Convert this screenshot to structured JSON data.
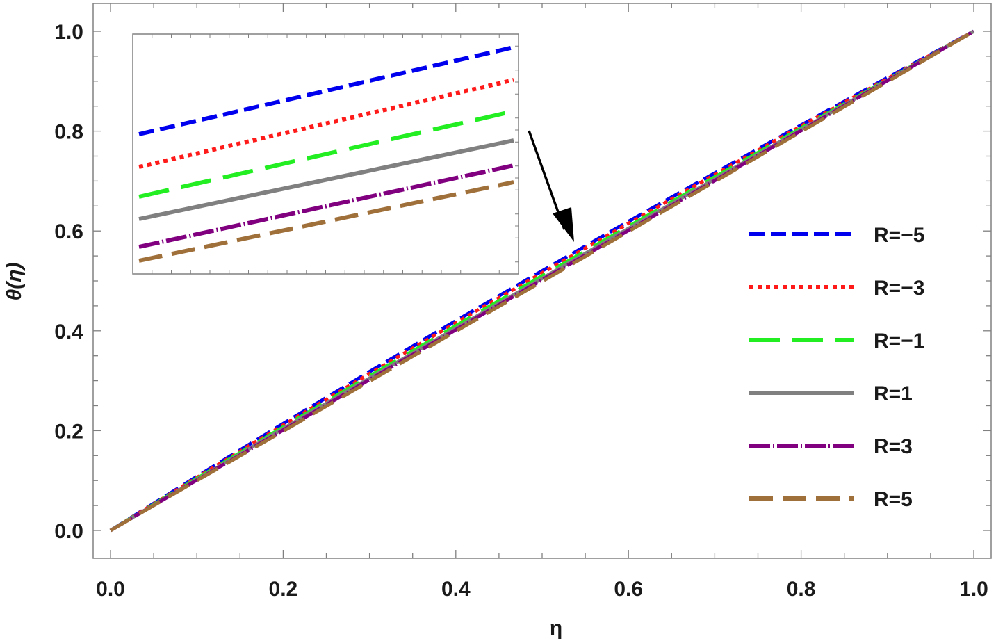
{
  "chart_data": {
    "type": "line",
    "title": "",
    "xlabel": "η",
    "ylabel": "θ(η)",
    "xlim": [
      0.0,
      1.0
    ],
    "ylim": [
      0.0,
      1.0
    ],
    "x_ticks": [
      "0.0",
      "0.2",
      "0.4",
      "0.6",
      "0.8",
      "1.0"
    ],
    "y_ticks": [
      "0.0",
      "0.2",
      "0.4",
      "0.6",
      "0.8",
      "1.0"
    ],
    "legend_position": "right",
    "x": [
      0.0,
      0.1,
      0.2,
      0.3,
      0.4,
      0.5,
      0.6,
      0.7,
      0.8,
      0.9,
      1.0
    ],
    "series": [
      {
        "name": "R=−5",
        "color": "#0000ee",
        "style": "dashed",
        "values": [
          0.0,
          0.108,
          0.214,
          0.318,
          0.42,
          0.52,
          0.619,
          0.716,
          0.812,
          0.907,
          1.0
        ]
      },
      {
        "name": "R=−3",
        "color": "#ff1a1a",
        "style": "dotted",
        "values": [
          0.0,
          0.106,
          0.211,
          0.314,
          0.416,
          0.516,
          0.615,
          0.713,
          0.81,
          0.905,
          1.0
        ]
      },
      {
        "name": "R=−1",
        "color": "#22ee22",
        "style": "long-dashed",
        "values": [
          0.0,
          0.104,
          0.207,
          0.309,
          0.41,
          0.51,
          0.609,
          0.708,
          0.806,
          0.903,
          1.0
        ]
      },
      {
        "name": "R=1",
        "color": "#808080",
        "style": "solid",
        "values": [
          0.0,
          0.102,
          0.204,
          0.305,
          0.405,
          0.505,
          0.605,
          0.704,
          0.803,
          0.902,
          1.0
        ]
      },
      {
        "name": "R=3",
        "color": "#800080",
        "style": "dash-dot",
        "values": [
          0.0,
          0.101,
          0.201,
          0.302,
          0.402,
          0.502,
          0.601,
          0.701,
          0.801,
          0.901,
          1.0
        ]
      },
      {
        "name": "R=5",
        "color": "#a0703a",
        "style": "medium-dashed",
        "values": [
          0.0,
          0.1,
          0.199,
          0.299,
          0.399,
          0.499,
          0.599,
          0.699,
          0.799,
          0.899,
          1.0
        ]
      }
    ],
    "inset": {
      "description_of_lines_top_to_bottom": [
        "R=−5",
        "R=−3",
        "R=−1",
        "R=1",
        "R=3",
        "R=5"
      ]
    }
  }
}
